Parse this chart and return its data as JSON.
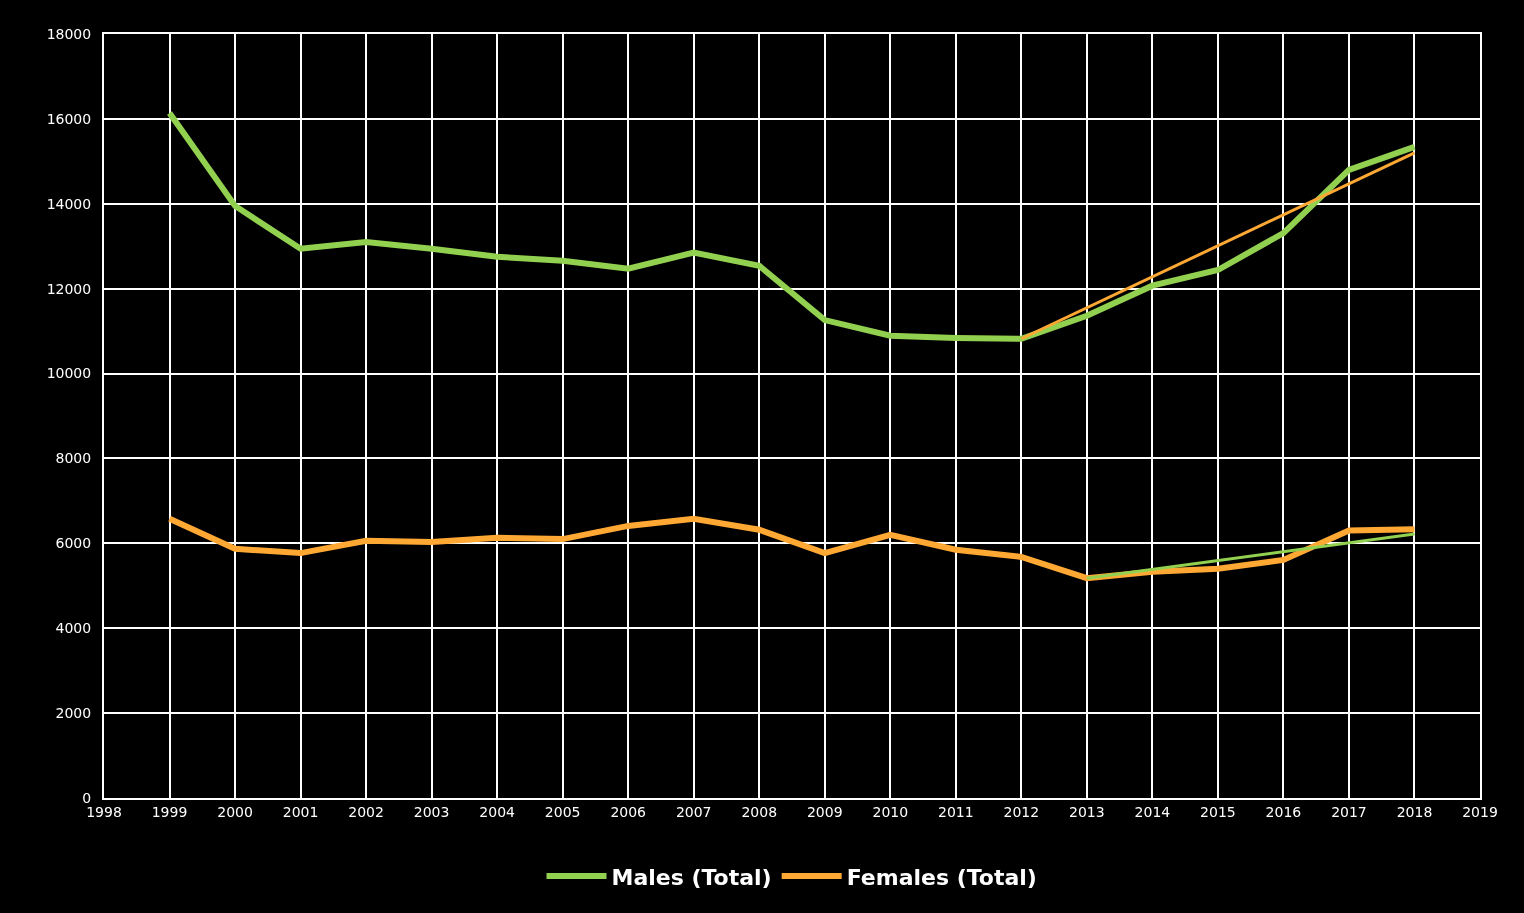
{
  "chart_data": {
    "type": "line",
    "x": [
      1999,
      2000,
      2001,
      2002,
      2003,
      2004,
      2005,
      2006,
      2007,
      2008,
      2009,
      2010,
      2011,
      2012,
      2013,
      2014,
      2015,
      2016,
      2017,
      2018
    ],
    "series": [
      {
        "name": "Males (Total)",
        "color": "#92d050",
        "values": [
          16140,
          13950,
          12940,
          13100,
          12940,
          12750,
          12660,
          12470,
          12850,
          12540,
          11260,
          10890,
          10840,
          10820,
          11360,
          12070,
          12440,
          13310,
          14800,
          15340
        ]
      },
      {
        "name": "Females (Total)",
        "color": "#ffa834",
        "values": [
          6580,
          5870,
          5770,
          6060,
          6030,
          6130,
          6100,
          6410,
          6580,
          6320,
          5770,
          6200,
          5850,
          5680,
          5180,
          5330,
          5400,
          5610,
          6300,
          6330
        ]
      },
      {
        "type": "line",
        "color": "#ffa834",
        "x": [
          2012,
          2018
        ],
        "values": [
          10820,
          15200
        ]
      },
      {
        "type": "line",
        "color": "#92d050",
        "x": [
          2013,
          2018
        ],
        "values": [
          5180,
          6220
        ]
      }
    ],
    "xlim": [
      1998,
      2019
    ],
    "xticks": [
      1998,
      1999,
      2000,
      2001,
      2002,
      2003,
      2004,
      2005,
      2006,
      2007,
      2008,
      2009,
      2010,
      2011,
      2012,
      2013,
      2014,
      2015,
      2016,
      2017,
      2018,
      2019
    ],
    "ylim": [
      0,
      18000
    ],
    "yticks": [
      0,
      2000,
      4000,
      6000,
      8000,
      10000,
      12000,
      14000,
      16000,
      18000
    ],
    "grid": true,
    "legend": "bottom",
    "marker": "none",
    "line_style": "solid"
  }
}
